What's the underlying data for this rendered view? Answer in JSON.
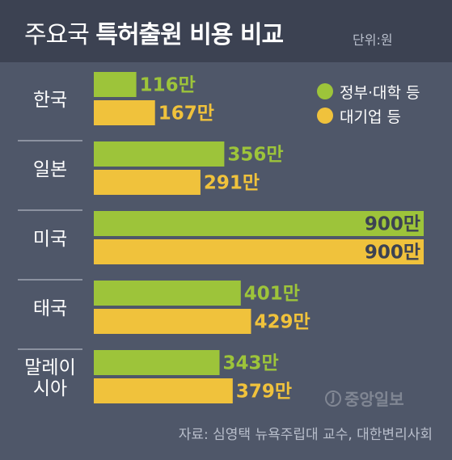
{
  "title": {
    "light": "주요국",
    "bold": "특허출원 비용 비교"
  },
  "unit": "단위:원",
  "legend": [
    {
      "label": "정부·대학 등",
      "color": "#9dc43a"
    },
    {
      "label": "대기업 등",
      "color": "#f0c23c"
    }
  ],
  "source": "자료: 심영택 뉴욕주립대 교수, 대한변리사회",
  "watermark": {
    "mark": "J",
    "text": "중앙일보"
  },
  "chart_data": {
    "type": "bar",
    "orientation": "horizontal",
    "categories": [
      "한국",
      "일본",
      "미국",
      "태국",
      "말레이시아"
    ],
    "category_display": [
      [
        "한국"
      ],
      [
        "일본"
      ],
      [
        "미국"
      ],
      [
        "태국"
      ],
      [
        "말레이",
        "시아"
      ]
    ],
    "series": [
      {
        "name": "정부·대학 등",
        "color": "#9dc43a",
        "values": [
          116,
          356,
          900,
          401,
          343
        ],
        "labels": [
          "116만",
          "356만",
          "900만",
          "401만",
          "343만"
        ]
      },
      {
        "name": "대기업 등",
        "color": "#f0c23c",
        "values": [
          167,
          291,
          900,
          429,
          379
        ],
        "labels": [
          "167만",
          "291만",
          "900만",
          "429만",
          "379만"
        ]
      }
    ],
    "value_unit": "만 원",
    "xlim": [
      0,
      900
    ],
    "grid": false,
    "legend_position": "top-right"
  }
}
